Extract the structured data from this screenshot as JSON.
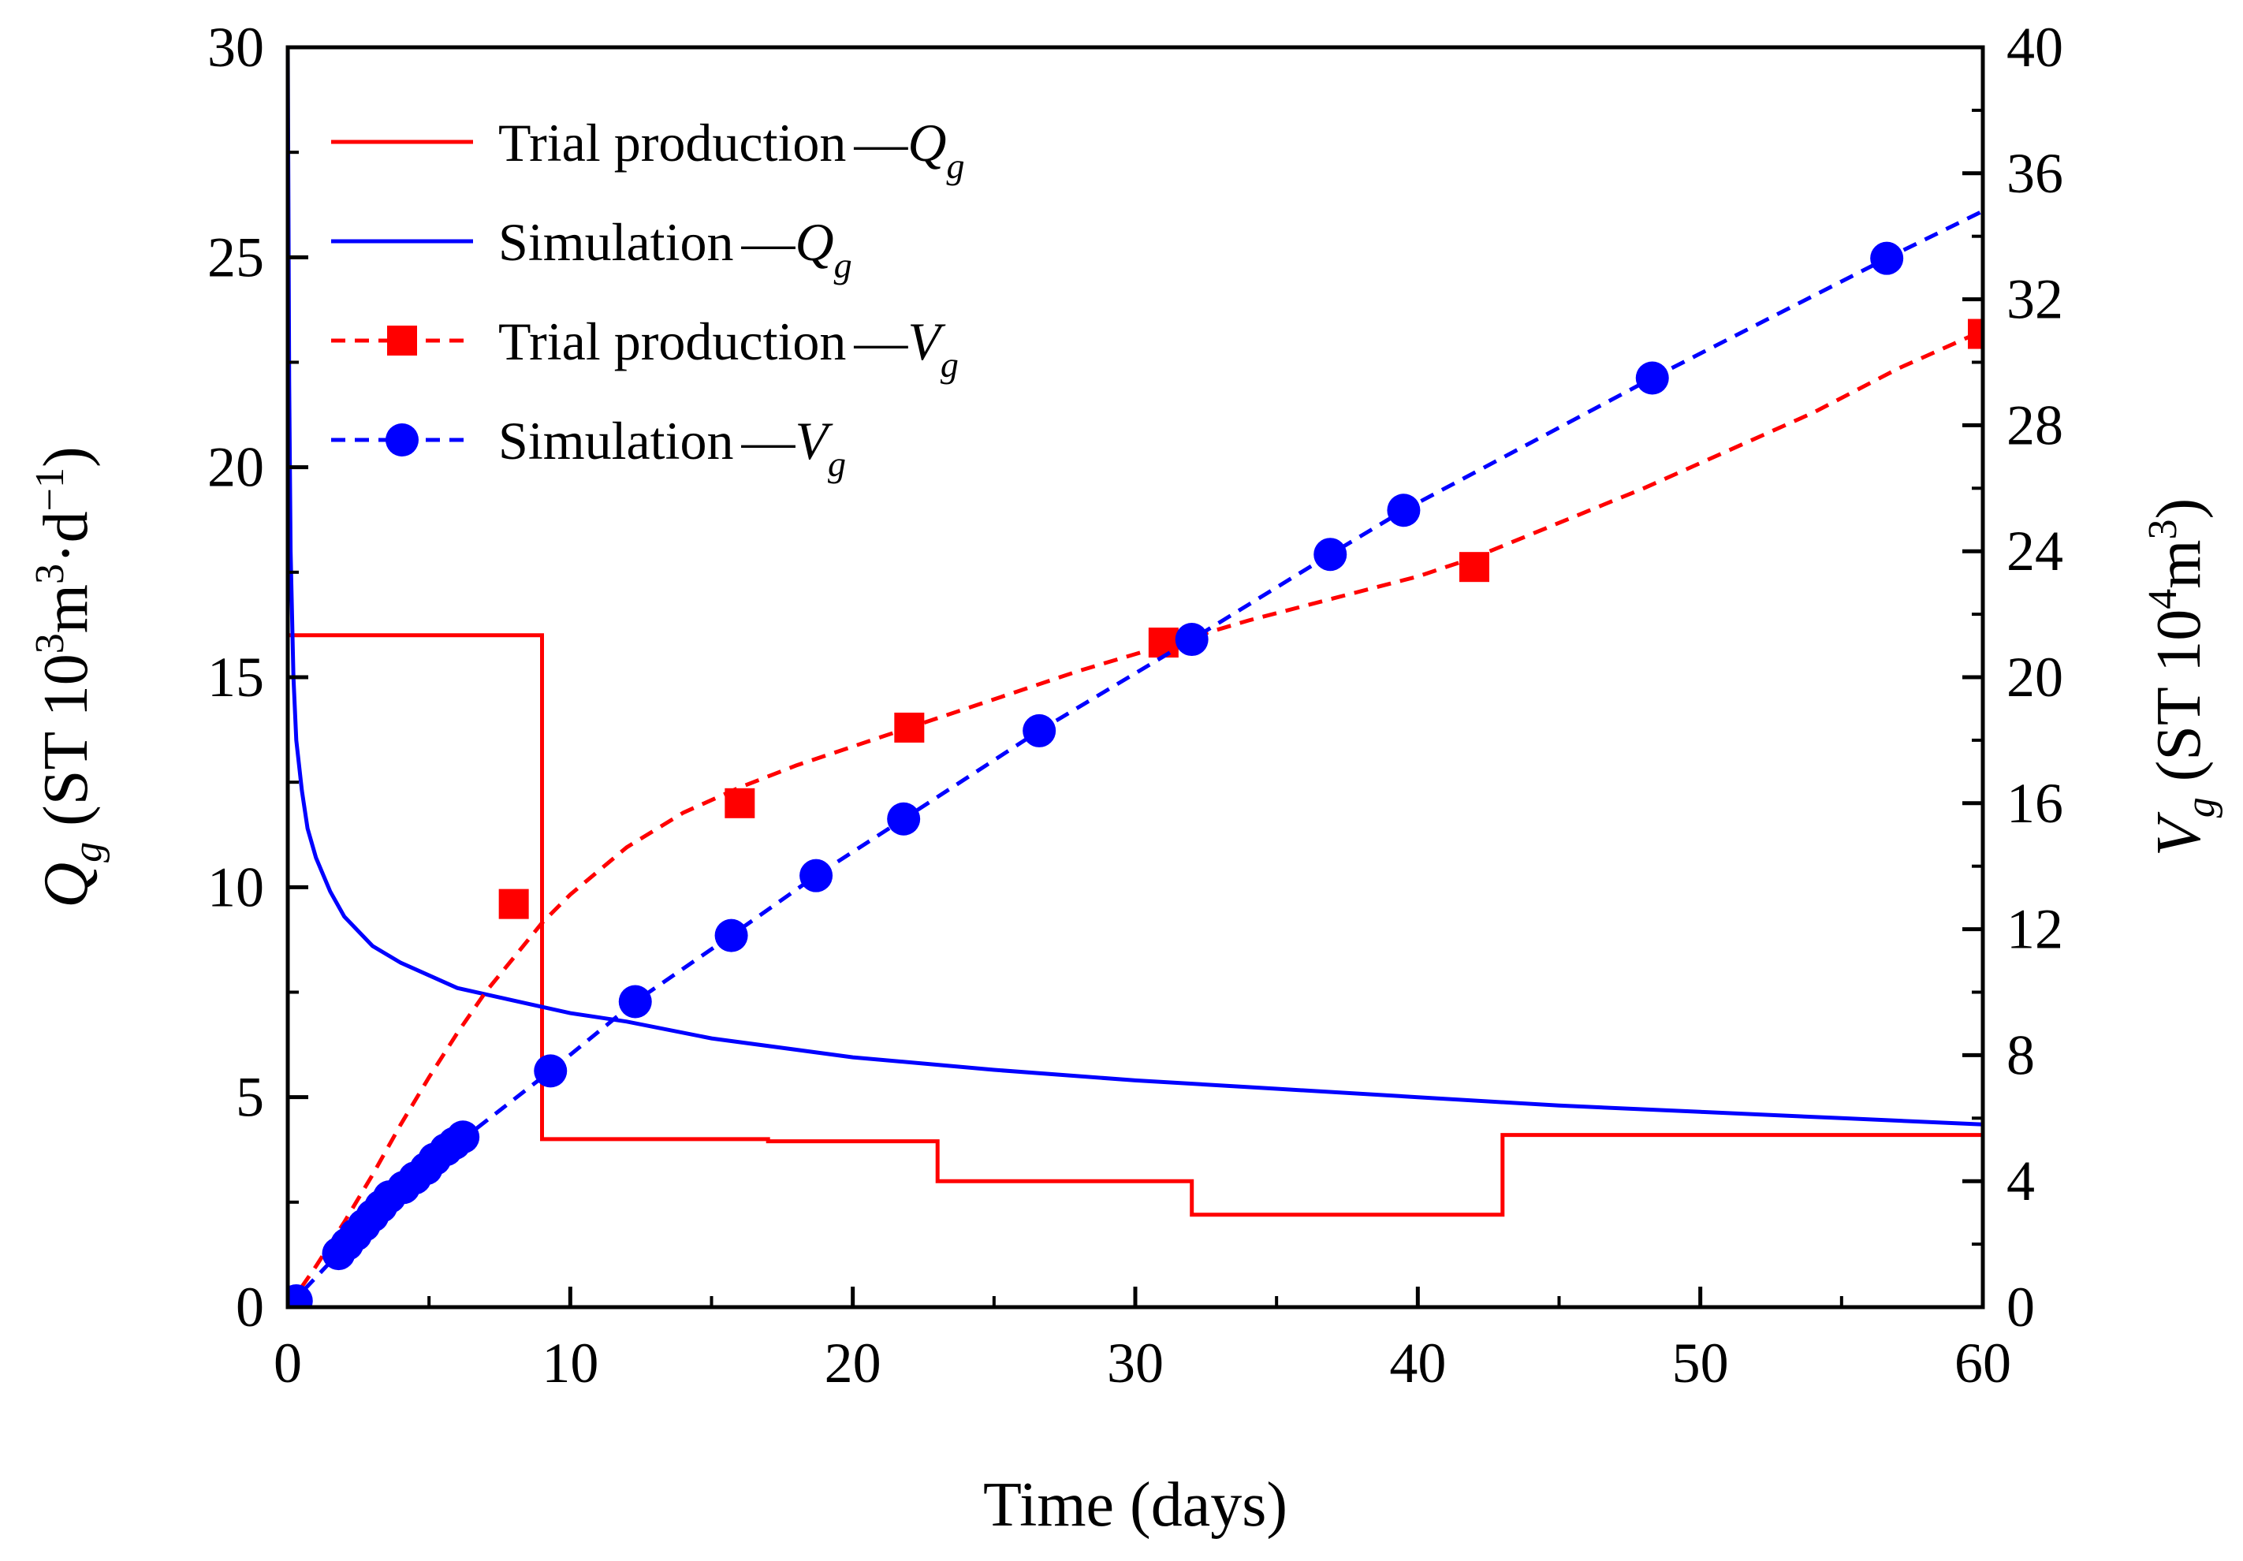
{
  "chart_data": {
    "type": "line",
    "xlabel": "Time (days)",
    "ylabel_left": {
      "symbol": "Q",
      "sub": "g",
      "unit_before_sup1": " (ST 10",
      "sup1": "3",
      "unit_mid": "m",
      "sup2": "3",
      "unit_mid2": "·d",
      "sup3": "−1",
      "unit_end": ")"
    },
    "ylabel_right": {
      "symbol": "V",
      "sub": "g",
      "unit_before_sup": " (ST 10",
      "sup1": "4",
      "unit_mid": "m",
      "sup2": "3",
      "unit_end": ")"
    },
    "xlim": [
      0,
      60
    ],
    "ylim_left": [
      0,
      30
    ],
    "ylim_right": [
      0,
      40
    ],
    "xticks": [
      0,
      10,
      20,
      30,
      40,
      50,
      60
    ],
    "yticks_left": [
      0,
      5,
      10,
      15,
      20,
      25,
      30
    ],
    "yticks_right": [
      0,
      4,
      8,
      12,
      16,
      20,
      24,
      28,
      32,
      36,
      40
    ],
    "grid": false,
    "legend_position": "top-left",
    "colors": {
      "trial": "#ff0000",
      "simulation": "#0000ff"
    },
    "series": [
      {
        "name": "Trial production",
        "name_suffix": "Q",
        "name_sub": "g",
        "axis": "left",
        "style": "step",
        "color": "#ff0000",
        "marker": "none",
        "x": [
          0,
          9,
          9,
          17,
          17,
          23,
          23,
          32,
          32,
          43,
          43,
          60
        ],
        "y": [
          16,
          16,
          4.0,
          4.0,
          3.95,
          3.95,
          3.0,
          3.0,
          2.2,
          2.2,
          4.1,
          4.1
        ]
      },
      {
        "name": "Simulation",
        "name_suffix": "Q",
        "name_sub": "g",
        "axis": "left",
        "style": "solid",
        "color": "#0000ff",
        "marker": "none",
        "x": [
          0,
          0.05,
          0.1,
          0.2,
          0.3,
          0.5,
          0.7,
          1,
          1.5,
          2,
          3,
          4,
          5,
          6,
          8,
          10,
          12,
          15,
          20,
          25,
          30,
          35,
          40,
          45,
          50,
          55,
          60
        ],
        "y": [
          30,
          22,
          18,
          15,
          13.5,
          12.3,
          11.4,
          10.7,
          9.9,
          9.3,
          8.6,
          8.2,
          7.9,
          7.6,
          7.3,
          7.0,
          6.8,
          6.4,
          5.95,
          5.65,
          5.4,
          5.2,
          5.0,
          4.8,
          4.65,
          4.5,
          4.35
        ]
      },
      {
        "name": "Trial production",
        "name_suffix": "V",
        "name_sub": "g",
        "axis": "right",
        "style": "dashed",
        "color": "#ff0000",
        "marker": "square",
        "x": [
          0,
          1,
          2,
          3,
          4,
          5,
          6,
          7,
          8,
          9,
          10,
          12,
          14,
          16,
          18,
          20,
          22,
          24,
          26,
          28,
          31,
          34,
          37,
          40,
          42,
          45,
          48,
          51,
          54,
          57,
          60
        ],
        "y": [
          0,
          1.3,
          2.7,
          4.2,
          5.8,
          7.3,
          8.7,
          10.0,
          11.1,
          12.2,
          13.1,
          14.6,
          15.7,
          16.5,
          17.2,
          17.8,
          18.4,
          19.0,
          19.6,
          20.2,
          21.0,
          21.8,
          22.5,
          23.2,
          23.8,
          24.9,
          26.0,
          27.2,
          28.4,
          29.8,
          31.0
        ],
        "marker_x": [
          8,
          16,
          22,
          31,
          42,
          60
        ],
        "marker_y": [
          12.8,
          16.0,
          18.4,
          21.1,
          23.5,
          30.9
        ]
      },
      {
        "name": "Simulation",
        "name_suffix": "V",
        "name_sub": "g",
        "axis": "right",
        "style": "dashed",
        "color": "#0000ff",
        "marker": "circle",
        "x": [
          0,
          2,
          4,
          6,
          9.3,
          12.3,
          15.7,
          18.7,
          21.8,
          26.6,
          32,
          36.9,
          39.5,
          48.3,
          56.6,
          60
        ],
        "y": [
          0,
          1.9,
          3.6,
          5.2,
          7.5,
          9.7,
          11.8,
          13.7,
          15.5,
          18.3,
          21.2,
          23.9,
          25.3,
          29.5,
          33.3,
          34.8
        ],
        "marker_x": [
          0.3,
          1.8,
          2.1,
          2.4,
          2.7,
          3.0,
          3.3,
          3.6,
          4.1,
          4.5,
          4.9,
          5.2,
          5.6,
          5.9,
          6.2,
          9.3,
          12.3,
          15.7,
          18.7,
          21.8,
          26.6,
          32,
          36.9,
          39.5,
          48.3,
          56.6
        ],
        "marker_y": [
          0.2,
          1.7,
          2.0,
          2.3,
          2.6,
          2.9,
          3.2,
          3.5,
          3.8,
          4.1,
          4.4,
          4.7,
          5.0,
          5.2,
          5.4,
          7.5,
          9.7,
          11.8,
          13.7,
          15.5,
          18.3,
          21.2,
          23.9,
          25.3,
          29.5,
          33.3
        ]
      }
    ],
    "legend": [
      {
        "label": "Trial production",
        "dash": "—",
        "sym": "Q",
        "sub": "g",
        "series_index": 0
      },
      {
        "label": "Simulation",
        "dash": "—",
        "sym": "Q",
        "sub": "g",
        "series_index": 1
      },
      {
        "label": "Trial production",
        "dash": "—",
        "sym": "V",
        "sub": "g",
        "series_index": 2
      },
      {
        "label": "Simulation",
        "dash": "—",
        "sym": "V",
        "sub": "g",
        "series_index": 3
      }
    ]
  }
}
